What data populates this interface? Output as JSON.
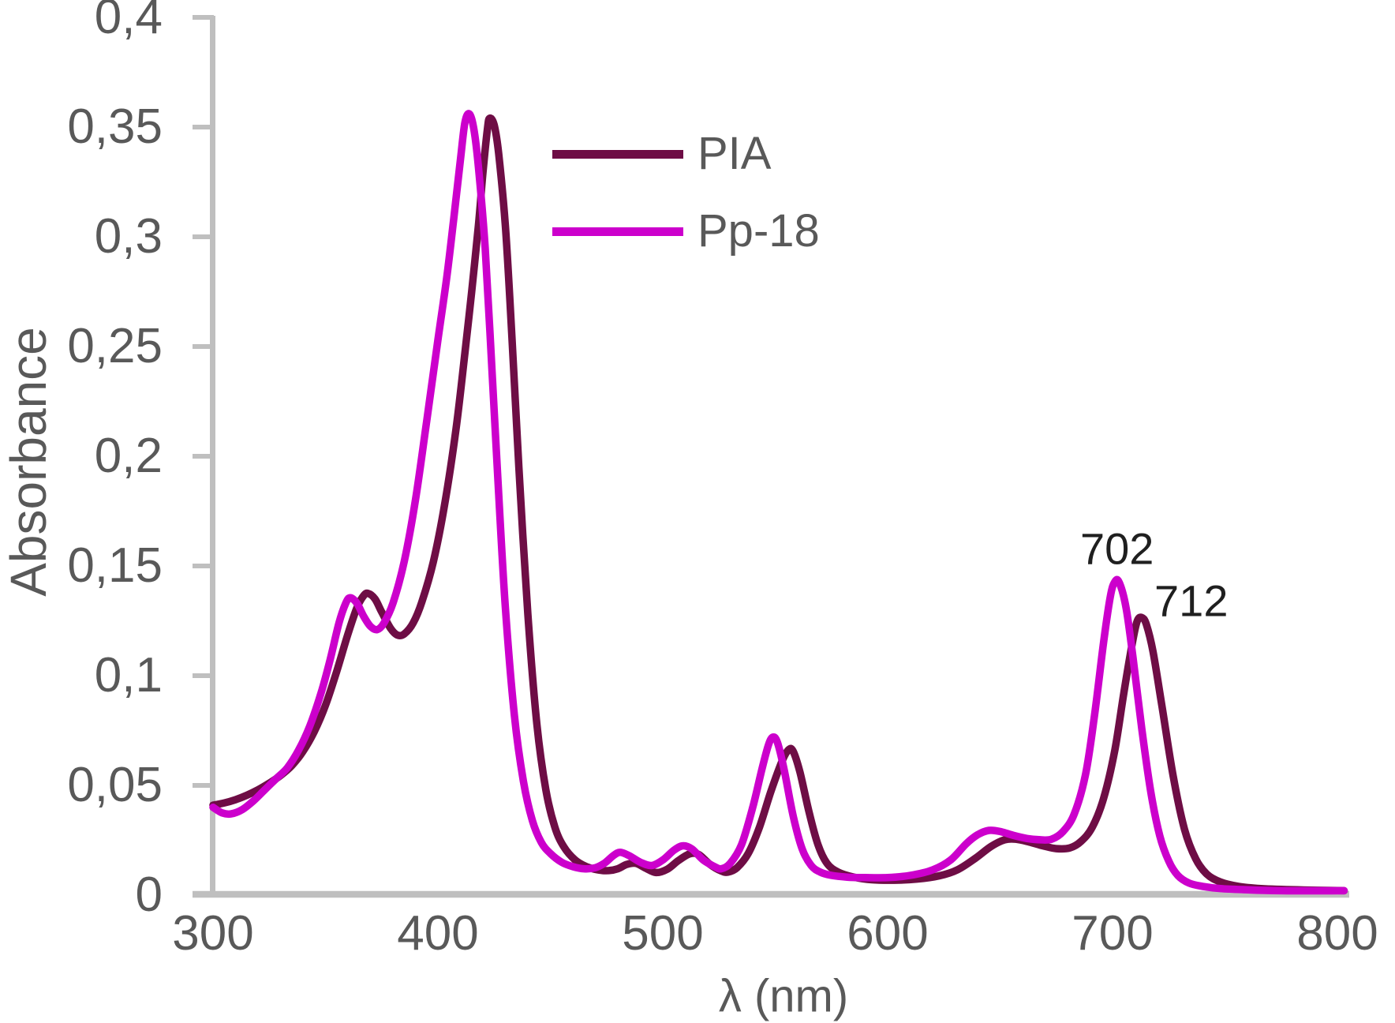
{
  "chart_data": {
    "type": "line",
    "title": "",
    "xlabel": "λ (nm)",
    "ylabel": "Absorbance",
    "xlim": [
      300,
      800
    ],
    "ylim": [
      0,
      0.4
    ],
    "grid": false,
    "legend_position": "upper-left-of-center, no border",
    "axis_color": "#BFBFBF",
    "tick_label_color": "#595959",
    "annotation_color": "#1F1F1F",
    "x_ticks": [
      300,
      400,
      500,
      600,
      700,
      800
    ],
    "x_tick_labels": [
      "300",
      "400",
      "500",
      "600",
      "700",
      "800"
    ],
    "y_ticks": [
      0,
      0.05,
      0.1,
      0.15,
      0.2,
      0.25,
      0.3,
      0.35,
      0.4
    ],
    "y_tick_labels": [
      "0",
      "0,05",
      "0,1",
      "0,15",
      "0,2",
      "0,25",
      "0,3",
      "0,35",
      "0,4"
    ],
    "annotations": [
      {
        "text": "702",
        "x": 702,
        "y": 0.158
      },
      {
        "text": "712",
        "x": 735,
        "y": 0.134
      }
    ],
    "series": [
      {
        "name": "PIA",
        "color": "#6E0D45",
        "peaks_nm": [
          368,
          422,
          556,
          712
        ],
        "soret_peak_absorbance": 0.354,
        "q_band_peak_absorbance": 0.127,
        "points": [
          [
            300,
            0.041
          ],
          [
            305,
            0.042
          ],
          [
            310,
            0.0435
          ],
          [
            315,
            0.0455
          ],
          [
            320,
            0.048
          ],
          [
            325,
            0.051
          ],
          [
            330,
            0.0545
          ],
          [
            335,
            0.059
          ],
          [
            340,
            0.0655
          ],
          [
            345,
            0.0745
          ],
          [
            350,
            0.0865
          ],
          [
            355,
            0.102
          ],
          [
            360,
            0.119
          ],
          [
            364,
            0.131
          ],
          [
            367,
            0.1365
          ],
          [
            369,
            0.1375
          ],
          [
            372,
            0.135
          ],
          [
            375,
            0.129
          ],
          [
            379,
            0.1215
          ],
          [
            382,
            0.1185
          ],
          [
            385,
            0.119
          ],
          [
            389,
            0.124
          ],
          [
            393,
            0.134
          ],
          [
            398,
            0.152
          ],
          [
            403,
            0.178
          ],
          [
            408,
            0.212
          ],
          [
            412,
            0.247
          ],
          [
            415,
            0.275
          ],
          [
            418,
            0.305
          ],
          [
            420,
            0.329
          ],
          [
            422,
            0.349
          ],
          [
            423,
            0.354
          ],
          [
            425,
            0.351
          ],
          [
            427,
            0.338
          ],
          [
            430,
            0.305
          ],
          [
            433,
            0.253
          ],
          [
            436,
            0.195
          ],
          [
            440,
            0.128
          ],
          [
            444,
            0.078
          ],
          [
            448,
            0.048
          ],
          [
            452,
            0.031
          ],
          [
            456,
            0.022
          ],
          [
            461,
            0.016
          ],
          [
            466,
            0.013
          ],
          [
            471,
            0.0115
          ],
          [
            476,
            0.0112
          ],
          [
            480,
            0.012
          ],
          [
            484,
            0.014
          ],
          [
            488,
            0.0145
          ],
          [
            492,
            0.0125
          ],
          [
            497,
            0.0103
          ],
          [
            502,
            0.0118
          ],
          [
            507,
            0.0158
          ],
          [
            512,
            0.0188
          ],
          [
            516,
            0.0185
          ],
          [
            521,
            0.014
          ],
          [
            526,
            0.011
          ],
          [
            529,
            0.0105
          ],
          [
            533,
            0.0125
          ],
          [
            538,
            0.019
          ],
          [
            543,
            0.031
          ],
          [
            548,
            0.047
          ],
          [
            553,
            0.061
          ],
          [
            556,
            0.0663
          ],
          [
            558,
            0.0655
          ],
          [
            561,
            0.056
          ],
          [
            565,
            0.038
          ],
          [
            569,
            0.023
          ],
          [
            573,
            0.0145
          ],
          [
            578,
            0.0105
          ],
          [
            585,
            0.0082
          ],
          [
            593,
            0.007
          ],
          [
            603,
            0.0068
          ],
          [
            613,
            0.0073
          ],
          [
            623,
            0.0088
          ],
          [
            631,
            0.0115
          ],
          [
            639,
            0.0168
          ],
          [
            646,
            0.0222
          ],
          [
            652,
            0.0252
          ],
          [
            657,
            0.0255
          ],
          [
            663,
            0.0242
          ],
          [
            669,
            0.0225
          ],
          [
            675,
            0.0212
          ],
          [
            681,
            0.0215
          ],
          [
            686,
            0.0245
          ],
          [
            691,
            0.031
          ],
          [
            696,
            0.044
          ],
          [
            701,
            0.066
          ],
          [
            705,
            0.092
          ],
          [
            709,
            0.116
          ],
          [
            711,
            0.125
          ],
          [
            713,
            0.1265
          ],
          [
            715,
            0.1235
          ],
          [
            718,
            0.111
          ],
          [
            722,
            0.086
          ],
          [
            727,
            0.054
          ],
          [
            732,
            0.03
          ],
          [
            737,
            0.0165
          ],
          [
            742,
            0.0095
          ],
          [
            748,
            0.006
          ],
          [
            756,
            0.004
          ],
          [
            766,
            0.003
          ],
          [
            782,
            0.0024
          ],
          [
            803,
            0.002
          ]
        ]
      },
      {
        "name": "Pp-18",
        "color": "#CC00CC",
        "peaks_nm": [
          360,
          413,
          549,
          702
        ],
        "soret_peak_absorbance": 0.356,
        "q_band_peak_absorbance": 0.143,
        "points": [
          [
            300,
            0.04
          ],
          [
            304,
            0.0375
          ],
          [
            308,
            0.037
          ],
          [
            313,
            0.039
          ],
          [
            318,
            0.043
          ],
          [
            323,
            0.048
          ],
          [
            328,
            0.053
          ],
          [
            333,
            0.058
          ],
          [
            338,
            0.066
          ],
          [
            343,
            0.077
          ],
          [
            348,
            0.092
          ],
          [
            352,
            0.107
          ],
          [
            356,
            0.124
          ],
          [
            359,
            0.133
          ],
          [
            361,
            0.1355
          ],
          [
            364,
            0.133
          ],
          [
            367,
            0.127
          ],
          [
            370,
            0.1225
          ],
          [
            373,
            0.121
          ],
          [
            376,
            0.124
          ],
          [
            380,
            0.133
          ],
          [
            385,
            0.152
          ],
          [
            390,
            0.18
          ],
          [
            395,
            0.216
          ],
          [
            400,
            0.253
          ],
          [
            404,
            0.282
          ],
          [
            407,
            0.308
          ],
          [
            410,
            0.335
          ],
          [
            412,
            0.352
          ],
          [
            414,
            0.356
          ],
          [
            416,
            0.349
          ],
          [
            418,
            0.332
          ],
          [
            421,
            0.295
          ],
          [
            424,
            0.24
          ],
          [
            427,
            0.183
          ],
          [
            430,
            0.131
          ],
          [
            434,
            0.082
          ],
          [
            438,
            0.052
          ],
          [
            442,
            0.034
          ],
          [
            446,
            0.024
          ],
          [
            450,
            0.019
          ],
          [
            455,
            0.015
          ],
          [
            460,
            0.013
          ],
          [
            465,
            0.012
          ],
          [
            470,
            0.0125
          ],
          [
            474,
            0.0145
          ],
          [
            478,
            0.018
          ],
          [
            481,
            0.0195
          ],
          [
            485,
            0.018
          ],
          [
            490,
            0.015
          ],
          [
            495,
            0.0135
          ],
          [
            500,
            0.016
          ],
          [
            505,
            0.0205
          ],
          [
            509,
            0.0225
          ],
          [
            513,
            0.021
          ],
          [
            518,
            0.016
          ],
          [
            523,
            0.013
          ],
          [
            526,
            0.012
          ],
          [
            530,
            0.0145
          ],
          [
            535,
            0.023
          ],
          [
            540,
            0.04
          ],
          [
            544,
            0.057
          ],
          [
            547,
            0.0685
          ],
          [
            549,
            0.072
          ],
          [
            551,
            0.0695
          ],
          [
            554,
            0.057
          ],
          [
            558,
            0.036
          ],
          [
            562,
            0.021
          ],
          [
            566,
            0.0135
          ],
          [
            570,
            0.0105
          ],
          [
            575,
            0.009
          ],
          [
            582,
            0.0082
          ],
          [
            590,
            0.008
          ],
          [
            600,
            0.008
          ],
          [
            610,
            0.009
          ],
          [
            620,
            0.0115
          ],
          [
            628,
            0.016
          ],
          [
            635,
            0.0235
          ],
          [
            640,
            0.0275
          ],
          [
            645,
            0.0295
          ],
          [
            650,
            0.029
          ],
          [
            656,
            0.0272
          ],
          [
            662,
            0.0258
          ],
          [
            668,
            0.0252
          ],
          [
            673,
            0.0255
          ],
          [
            678,
            0.029
          ],
          [
            683,
            0.037
          ],
          [
            688,
            0.055
          ],
          [
            692,
            0.082
          ],
          [
            696,
            0.115
          ],
          [
            699,
            0.136
          ],
          [
            701,
            0.1428
          ],
          [
            703,
            0.1425
          ],
          [
            706,
            0.131
          ],
          [
            709,
            0.109
          ],
          [
            713,
            0.076
          ],
          [
            717,
            0.047
          ],
          [
            721,
            0.027
          ],
          [
            725,
            0.0155
          ],
          [
            729,
            0.009
          ],
          [
            734,
            0.0055
          ],
          [
            740,
            0.004
          ],
          [
            748,
            0.003
          ],
          [
            758,
            0.0025
          ],
          [
            775,
            0.002
          ],
          [
            803,
            0.002
          ]
        ]
      }
    ]
  }
}
